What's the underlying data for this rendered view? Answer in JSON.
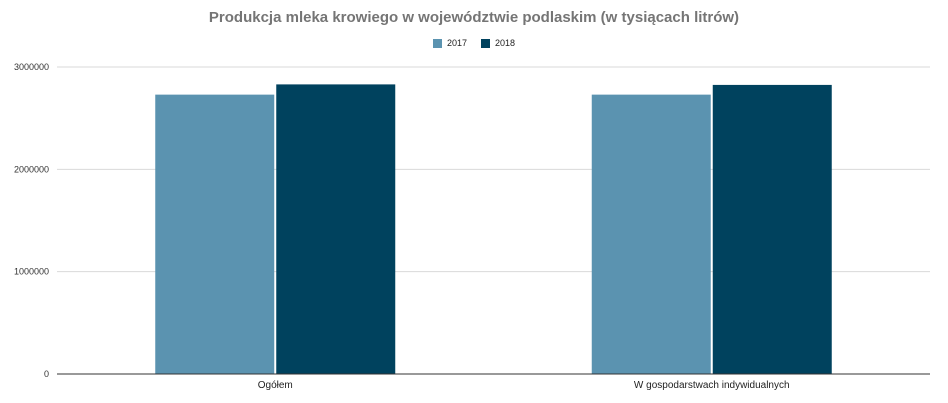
{
  "chart_data": {
    "type": "bar",
    "title": "Produkcja mleka krowiego w województwie podlaskim (w tysiącach litrów)",
    "categories": [
      "Ogółem",
      "W gospodarstwach indywidualnych"
    ],
    "series": [
      {
        "name": "2017",
        "values": [
          2730000,
          2730000
        ],
        "color": "#5b93b0"
      },
      {
        "name": "2018",
        "values": [
          2830000,
          2825000
        ],
        "color": "#00425e"
      }
    ],
    "ylim": [
      0,
      3000000
    ],
    "yticks": [
      "0",
      "1000000",
      "2000000",
      "3000000"
    ],
    "grid": true,
    "legend_position": "top-center",
    "xlabel": "",
    "ylabel": ""
  }
}
